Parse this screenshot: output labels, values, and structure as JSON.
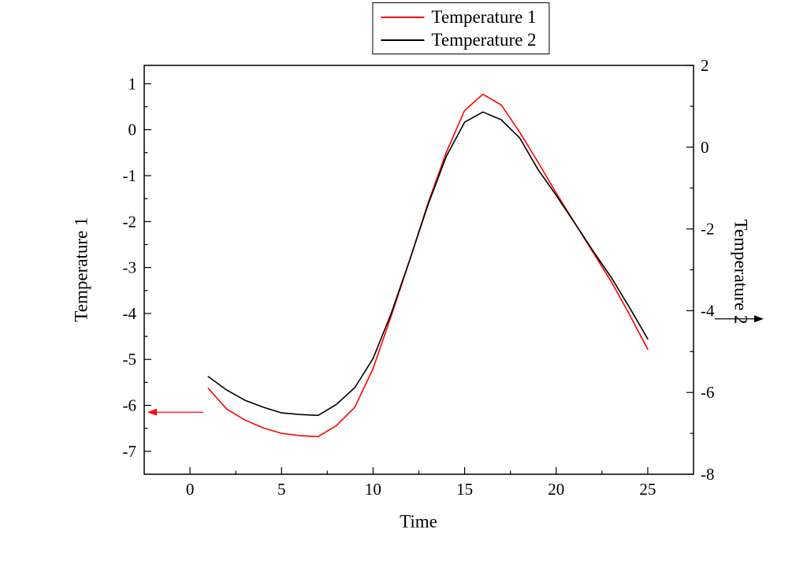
{
  "chart_data": {
    "type": "line",
    "title": "",
    "xlabel": "Time",
    "ylabel_left": "Temperature 1",
    "ylabel_right": "Temperature 2",
    "xlim": [
      -2.5,
      27.5
    ],
    "ylim_left": [
      -7.5,
      1.4
    ],
    "ylim_right": [
      -8,
      2
    ],
    "x_ticks": [
      0,
      5,
      10,
      15,
      20,
      25
    ],
    "y_ticks_left": [
      1,
      0,
      -1,
      -2,
      -3,
      -4,
      -5,
      -6,
      -7
    ],
    "y_ticks_right": [
      2,
      0,
      -2,
      -4,
      -6,
      -8
    ],
    "grid": false,
    "legend": {
      "position": "top-center",
      "entries": [
        "Temperature 1",
        "Temperature 2"
      ]
    },
    "x": [
      1,
      2,
      3,
      4,
      5,
      6,
      7,
      8,
      9,
      10,
      11,
      12,
      13,
      14,
      15,
      16,
      17,
      18,
      19,
      20,
      21,
      22,
      23,
      24,
      25
    ],
    "series": [
      {
        "name": "Temperature 1",
        "axis": "left",
        "color": "#ff0000",
        "values": [
          -5.63,
          -6.08,
          -6.32,
          -6.49,
          -6.61,
          -6.66,
          -6.68,
          -6.44,
          -6.04,
          -5.2,
          -4.04,
          -2.84,
          -1.6,
          -0.49,
          0.42,
          0.77,
          0.54,
          -0.05,
          -0.7,
          -1.38,
          -2.02,
          -2.66,
          -3.3,
          -4.02,
          -4.78
        ]
      },
      {
        "name": "Temperature 2",
        "axis": "right",
        "color": "#000000",
        "values": [
          -5.61,
          -5.94,
          -6.19,
          -6.36,
          -6.5,
          -6.54,
          -6.56,
          -6.29,
          -5.88,
          -5.17,
          -4.05,
          -2.76,
          -1.41,
          -0.22,
          0.61,
          0.86,
          0.67,
          0.23,
          -0.54,
          -1.18,
          -1.85,
          -2.53,
          -3.18,
          -3.92,
          -4.69
        ]
      }
    ],
    "annotations": [
      {
        "type": "arrow",
        "direction": "left",
        "color": "#ff0000",
        "y_axis": "left",
        "y_value": -6.15,
        "meaning": "red curve reads on left axis"
      },
      {
        "type": "arrow",
        "direction": "right",
        "color": "#000000",
        "y_axis": "right",
        "y_value": -4.2,
        "meaning": "black curve reads on right axis"
      }
    ]
  }
}
